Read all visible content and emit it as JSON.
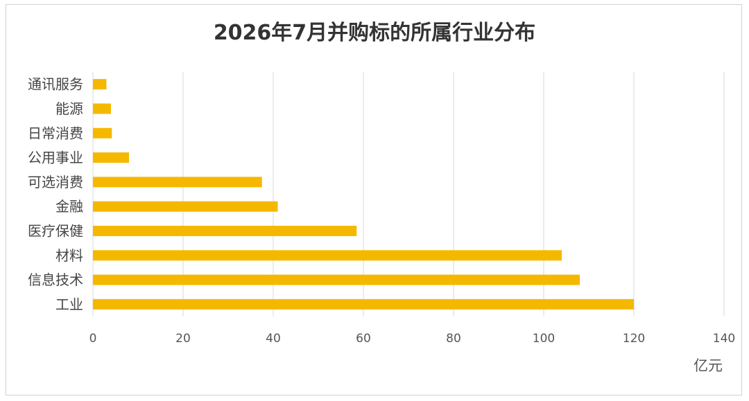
{
  "chart_data": {
    "type": "bar",
    "orientation": "horizontal",
    "title": "2026年7月并购标的所属行业分布",
    "xlabel": "亿元",
    "ylabel": "",
    "categories": [
      "通讯服务",
      "能源",
      "日常消费",
      "公用事业",
      "可选消费",
      "金融",
      "医疗保健",
      "材料",
      "信息技术",
      "工业"
    ],
    "values": [
      3,
      4,
      4.2,
      8,
      37.5,
      41,
      58.5,
      104,
      108,
      120
    ],
    "xlim": [
      0,
      140
    ],
    "xticks": [
      0,
      20,
      40,
      60,
      80,
      100,
      120,
      140
    ],
    "grid": "vertical",
    "legend": "none",
    "bar_color": "#F5B800",
    "grid_color": "#D9D9D9"
  }
}
